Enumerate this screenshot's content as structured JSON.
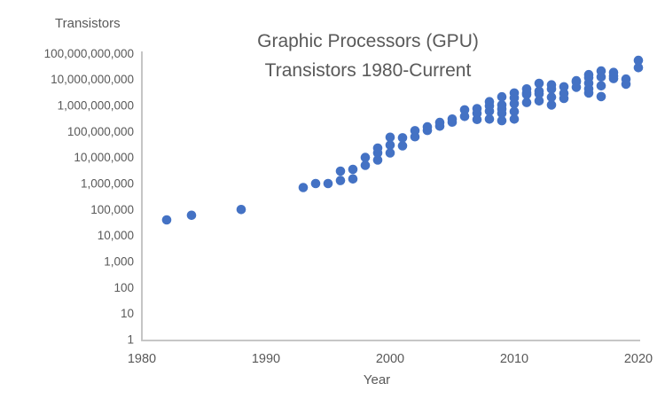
{
  "chart_data": {
    "type": "scatter",
    "title_line1": "Graphic Processors (GPU)",
    "title_line2": "Transistors 1980-Current",
    "y_axis_title": "Transistors",
    "x_axis_title": "Year",
    "x_tick_years": [
      1980,
      1990,
      2000,
      2010,
      2020
    ],
    "x_tick_labels": [
      "1980",
      "1990",
      "2000",
      "2010",
      "2020"
    ],
    "y_tick_values": [
      100000000000,
      10000000000,
      1000000000,
      100000000,
      10000000,
      1000000,
      100000,
      10000,
      1000,
      100,
      10,
      1
    ],
    "y_tick_labels": [
      "100,000,000,000",
      "10,000,000,000",
      "1,000,000,000",
      "100,000,000",
      "10,000,000",
      "1,000,000",
      "100,000",
      "10,000",
      "1,000",
      "100",
      "10",
      "1"
    ],
    "x_range": [
      1980,
      2020
    ],
    "y_range": [
      1,
      100000000000
    ],
    "y_scale": "log10",
    "gridlines": false,
    "legend_position": "none",
    "point_color": "#4472C4",
    "text_color": "#595959",
    "axis_line_color": "#BFBFBF",
    "points": [
      [
        1982,
        40000
      ],
      [
        1984,
        60000
      ],
      [
        1988,
        100000
      ],
      [
        1993,
        700000
      ],
      [
        1994,
        1000000
      ],
      [
        1995,
        1000000
      ],
      [
        1996,
        1300000
      ],
      [
        1996,
        3000000
      ],
      [
        1997,
        1500000
      ],
      [
        1997,
        3500000
      ],
      [
        1998,
        5000000
      ],
      [
        1998,
        10000000
      ],
      [
        1999,
        8000000
      ],
      [
        1999,
        15000000
      ],
      [
        1999,
        23000000
      ],
      [
        2000,
        15000000
      ],
      [
        2000,
        30000000
      ],
      [
        2000,
        60000000
      ],
      [
        2001,
        28000000
      ],
      [
        2001,
        57000000
      ],
      [
        2002,
        63000000
      ],
      [
        2002,
        107000000
      ],
      [
        2003,
        110000000
      ],
      [
        2003,
        150000000
      ],
      [
        2004,
        160000000
      ],
      [
        2004,
        222000000
      ],
      [
        2005,
        230000000
      ],
      [
        2005,
        300000000
      ],
      [
        2006,
        380000000
      ],
      [
        2006,
        680000000
      ],
      [
        2007,
        290000000
      ],
      [
        2007,
        500000000
      ],
      [
        2007,
        754000000
      ],
      [
        2008,
        300000000
      ],
      [
        2008,
        600000000
      ],
      [
        2008,
        956000000
      ],
      [
        2008,
        1400000000
      ],
      [
        2009,
        260000000
      ],
      [
        2009,
        500000000
      ],
      [
        2009,
        727000000
      ],
      [
        2009,
        1040000000
      ],
      [
        2009,
        2150000000
      ],
      [
        2010,
        300000000
      ],
      [
        2010,
        585000000
      ],
      [
        2010,
        1170000000
      ],
      [
        2010,
        1950000000
      ],
      [
        2010,
        3000000000
      ],
      [
        2011,
        1300000000
      ],
      [
        2011,
        2640000000
      ],
      [
        2011,
        3000000000
      ],
      [
        2011,
        4310000000
      ],
      [
        2012,
        1500000000
      ],
      [
        2012,
        2800000000
      ],
      [
        2012,
        3540000000
      ],
      [
        2012,
        7080000000
      ],
      [
        2013,
        1040000000
      ],
      [
        2013,
        2080000000
      ],
      [
        2013,
        4300000000
      ],
      [
        2013,
        6200000000
      ],
      [
        2014,
        1870000000
      ],
      [
        2014,
        2940000000
      ],
      [
        2014,
        5200000000
      ],
      [
        2015,
        5000000000
      ],
      [
        2015,
        8000000000
      ],
      [
        2015,
        8900000000
      ],
      [
        2016,
        3000000000
      ],
      [
        2016,
        4400000000
      ],
      [
        2016,
        7200000000
      ],
      [
        2016,
        11720000000
      ],
      [
        2016,
        15300000000
      ],
      [
        2017,
        2200000000
      ],
      [
        2017,
        5700000000
      ],
      [
        2017,
        12500000000
      ],
      [
        2017,
        21100000000
      ],
      [
        2018,
        10800000000
      ],
      [
        2018,
        13600000000
      ],
      [
        2018,
        18600000000
      ],
      [
        2019,
        6600000000
      ],
      [
        2019,
        10300000000
      ],
      [
        2020,
        28300000000
      ],
      [
        2020,
        54200000000
      ]
    ]
  }
}
